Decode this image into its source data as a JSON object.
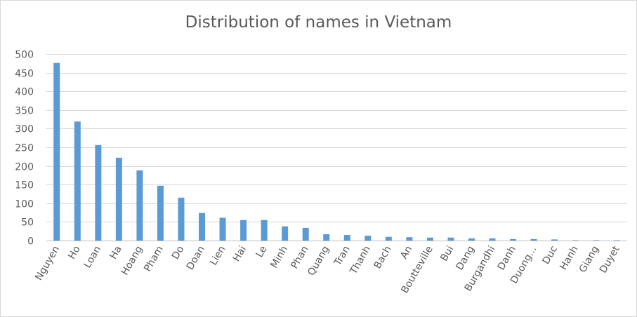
{
  "chart_data": {
    "type": "bar",
    "title": "Distribution of names in Vietnam",
    "xlabel": "",
    "ylabel": "",
    "ylim": [
      0,
      500
    ],
    "yticks": [
      0,
      50,
      100,
      150,
      200,
      250,
      300,
      350,
      400,
      450,
      500
    ],
    "grid": true,
    "legend": "none",
    "bar_color": "#5B9BD5",
    "categories": [
      "Nguyen",
      "Ho",
      "Loan",
      "Ha",
      "Hoang",
      "Pham",
      "Do",
      "Doan",
      "Lien",
      "Hai",
      "Le",
      "Minh",
      "Phan",
      "Quang",
      "Tran",
      "Thanh",
      "Bach",
      "An",
      "Boutteville",
      "Bui",
      "Dang",
      "Burgandhi",
      "Danh",
      "Duong...",
      "Duc",
      "Hanh",
      "Giang",
      "Duyet"
    ],
    "values": [
      476,
      319,
      256,
      222,
      188,
      147,
      115,
      74,
      61,
      55,
      55,
      38,
      34,
      17,
      15,
      13,
      10,
      9,
      8,
      8,
      6,
      6,
      4,
      4,
      3,
      1,
      1,
      1
    ]
  }
}
